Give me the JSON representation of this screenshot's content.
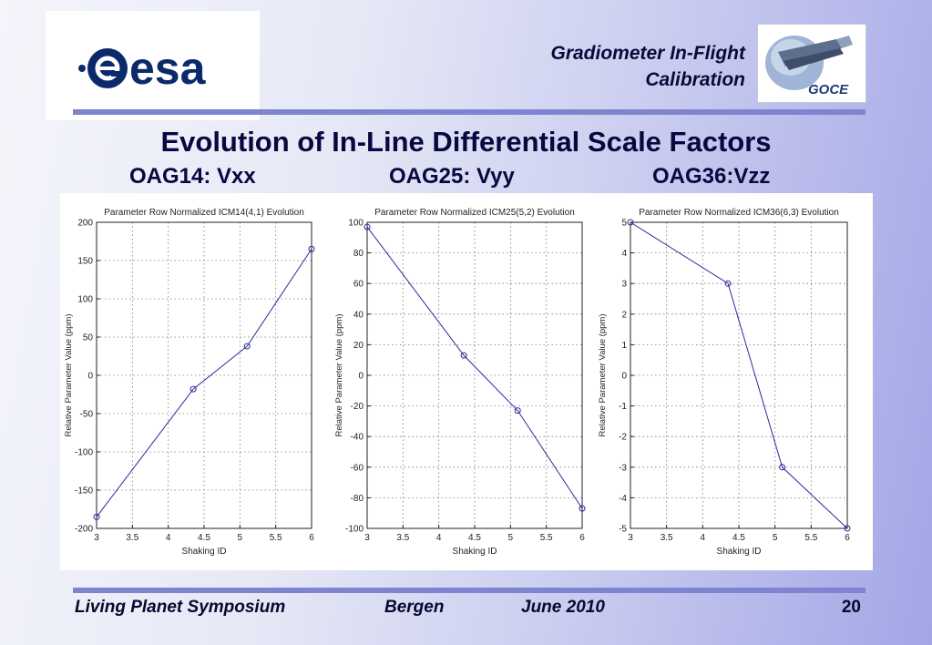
{
  "header": {
    "title_line1": "Gradiometer In-Flight",
    "title_line2": "Calibration",
    "esa_logo_text": "esa",
    "goce_logo_text": "GOCE"
  },
  "main_title": "Evolution of In-Line Differential Scale Factors",
  "subtitles": [
    "OAG14: Vxx",
    "OAG25: Vyy",
    "OAG36:Vzz"
  ],
  "footer": {
    "event": "Living Planet Symposium",
    "place": "Bergen",
    "date": "June 2010",
    "page": "20"
  },
  "colors": {
    "title_text": "#080840",
    "rule": "#7e84cf",
    "series_line": "#2a2a9a"
  },
  "chart_data": [
    {
      "type": "line",
      "title": "Parameter Row Normalized ICM14(4,1) Evolution",
      "xlabel": "Shaking ID",
      "ylabel": "Relative Parameter Value (ppm)",
      "xlim": [
        3,
        6
      ],
      "ylim": [
        -200,
        200
      ],
      "xticks": [
        3,
        3.5,
        4,
        4.5,
        5,
        5.5,
        6
      ],
      "yticks": [
        -200,
        -150,
        -100,
        -50,
        0,
        50,
        100,
        150,
        200
      ],
      "grid": true,
      "x": [
        3,
        4.35,
        5.1,
        6
      ],
      "y": [
        -185,
        -18,
        38,
        165
      ]
    },
    {
      "type": "line",
      "title": "Parameter Row Normalized ICM25(5,2) Evolution",
      "xlabel": "Shaking ID",
      "ylabel": "Relative Parameter Value (ppm)",
      "xlim": [
        3,
        6
      ],
      "ylim": [
        -100,
        100
      ],
      "xticks": [
        3,
        3.5,
        4,
        4.5,
        5,
        5.5,
        6
      ],
      "yticks": [
        -100,
        -80,
        -60,
        -40,
        -20,
        0,
        20,
        40,
        60,
        80,
        100
      ],
      "grid": true,
      "x": [
        3,
        4.35,
        5.1,
        6
      ],
      "y": [
        97,
        13,
        -23,
        -87
      ]
    },
    {
      "type": "line",
      "title": "Parameter Row Normalized ICM36(6,3) Evolution",
      "xlabel": "Shaking ID",
      "ylabel": "Relative Parameter Value (ppm)",
      "xlim": [
        3,
        6
      ],
      "ylim": [
        -5,
        5
      ],
      "xticks": [
        3,
        3.5,
        4,
        4.5,
        5,
        5.5,
        6
      ],
      "yticks": [
        -5,
        -4,
        -3,
        -2,
        -1,
        0,
        1,
        2,
        3,
        4,
        5
      ],
      "grid": true,
      "x": [
        3,
        4.35,
        5.1,
        6
      ],
      "y": [
        5,
        3,
        -3,
        -5
      ]
    }
  ]
}
